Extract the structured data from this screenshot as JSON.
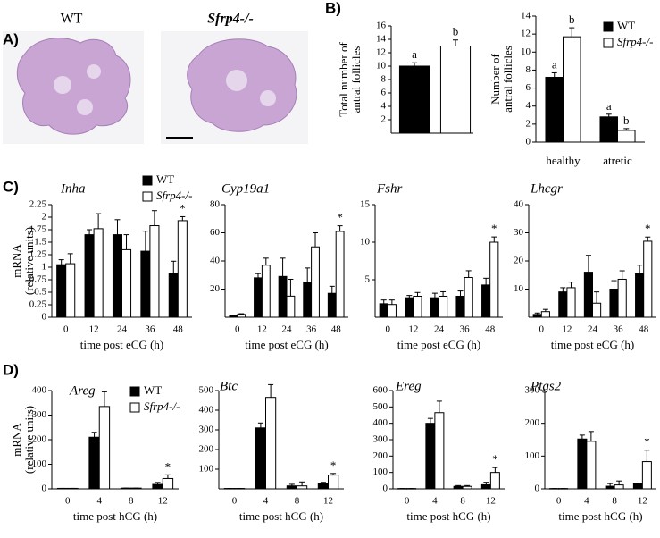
{
  "panel_labels": [
    "A)",
    "B)",
    "C)",
    "D)"
  ],
  "images": [
    "WT",
    "Sfrp4-/-"
  ],
  "chart_data": [
    {
      "type": "bar",
      "ylabel": [
        "Total number of",
        "antral follicles"
      ],
      "categories": [
        null,
        null
      ],
      "values": [
        10,
        13
      ],
      "errors": [
        0.5,
        0.9
      ],
      "colors": [
        "#000000",
        "#ffffff"
      ],
      "annotations": [
        "a",
        "b"
      ],
      "ylim": [
        0,
        16
      ],
      "yticks": [
        2,
        4,
        6,
        8,
        10,
        12,
        14,
        16
      ]
    },
    {
      "type": "grouped-bar",
      "ylabel": [
        "Number of",
        "antral follicles"
      ],
      "categories": [
        "healthy",
        "atretic"
      ],
      "legend": true,
      "series": [
        {
          "name": "WT",
          "color": "#000000",
          "values": [
            7.2,
            2.8
          ],
          "errors": [
            0.5,
            0.3
          ],
          "annotations": [
            "a",
            "a"
          ]
        },
        {
          "name": "Sfrp4-/-",
          "color": "#ffffff",
          "values": [
            11.7,
            1.3
          ],
          "errors": [
            1.0,
            0.2
          ],
          "annotations": [
            "b",
            "b"
          ]
        }
      ],
      "ylim": [
        0,
        14
      ],
      "yticks": [
        0,
        2,
        4,
        6,
        8,
        10,
        12,
        14
      ]
    },
    {
      "type": "grouped-bar",
      "title": "Inha",
      "ylabel": [
        "mRNA",
        "(relative units)"
      ],
      "xlabel": "time post eCG (h)",
      "legend": true,
      "categories": [
        "0",
        "12",
        "24",
        "36",
        "48"
      ],
      "series": [
        {
          "name": "WT",
          "color": "#000000",
          "values": [
            1.05,
            1.65,
            1.65,
            1.32,
            0.87
          ],
          "errors": [
            0.1,
            0.1,
            0.3,
            0.4,
            0.25
          ],
          "annotations": [
            null,
            null,
            null,
            null,
            null
          ]
        },
        {
          "name": "Sfrp4-/-",
          "color": "#ffffff",
          "values": [
            1.07,
            1.77,
            1.35,
            1.83,
            1.93
          ],
          "errors": [
            0.2,
            0.3,
            0.3,
            0.3,
            0.08
          ],
          "annotations": [
            null,
            null,
            null,
            null,
            "*"
          ]
        }
      ],
      "ylim": [
        0,
        2.25
      ],
      "yticks": [
        0,
        0.25,
        0.5,
        0.75,
        1,
        1.25,
        1.5,
        1.75,
        2,
        2.25
      ]
    },
    {
      "type": "grouped-bar",
      "title": "Cyp19a1",
      "xlabel": "time post eCG (h)",
      "categories": [
        "0",
        "12",
        "24",
        "36",
        "48"
      ],
      "series": [
        {
          "color": "#000000",
          "values": [
            1,
            28,
            29,
            25,
            17
          ],
          "errors": [
            0.5,
            3,
            13,
            10,
            5
          ],
          "annotations": [
            null,
            null,
            null,
            null,
            null
          ]
        },
        {
          "color": "#ffffff",
          "values": [
            2,
            37,
            15,
            50,
            61
          ],
          "errors": [
            0.5,
            5,
            12,
            10,
            4
          ],
          "annotations": [
            null,
            null,
            null,
            null,
            "*"
          ]
        }
      ],
      "ylim": [
        0,
        80
      ],
      "yticks": [
        20,
        40,
        60,
        80
      ]
    },
    {
      "type": "grouped-bar",
      "title": "Fshr",
      "xlabel": "time post eCG (h)",
      "categories": [
        "0",
        "12",
        "24",
        "36",
        "48"
      ],
      "series": [
        {
          "color": "#000000",
          "values": [
            1.8,
            2.6,
            2.6,
            2.8,
            4.3
          ],
          "errors": [
            0.5,
            0.3,
            0.6,
            0.7,
            0.9
          ],
          "annotations": [
            null,
            null,
            null,
            null,
            null
          ]
        },
        {
          "color": "#ffffff",
          "values": [
            1.7,
            2.8,
            2.8,
            5.3,
            10
          ],
          "errors": [
            0.6,
            0.5,
            0.6,
            0.9,
            0.7
          ],
          "annotations": [
            null,
            null,
            null,
            null,
            "*"
          ]
        }
      ],
      "ylim": [
        0,
        15
      ],
      "yticks": [
        5,
        10,
        15
      ]
    },
    {
      "type": "grouped-bar",
      "title": "Lhcgr",
      "xlabel": "time post eCG (h)",
      "categories": [
        "0",
        "12",
        "24",
        "36",
        "48"
      ],
      "series": [
        {
          "color": "#000000",
          "values": [
            1,
            9,
            16,
            10,
            15.5
          ],
          "errors": [
            0.5,
            1.5,
            6,
            3,
            3
          ],
          "annotations": [
            null,
            null,
            null,
            null,
            null
          ]
        },
        {
          "color": "#ffffff",
          "values": [
            2,
            10.5,
            5,
            13.5,
            27
          ],
          "errors": [
            0.8,
            2,
            4,
            3,
            1.5
          ],
          "annotations": [
            null,
            null,
            null,
            null,
            "*"
          ]
        }
      ],
      "ylim": [
        0,
        40
      ],
      "yticks": [
        10,
        20,
        30,
        40
      ]
    },
    {
      "type": "grouped-bar",
      "title": "Areg",
      "ylabel": [
        "mRNA",
        "(relative units)"
      ],
      "xlabel": "time post hCG (h)",
      "legend": true,
      "categories": [
        "0",
        "4",
        "8",
        "12"
      ],
      "series": [
        {
          "name": "WT",
          "color": "#000000",
          "values": [
            2,
            210,
            3,
            18
          ],
          "errors": [
            0,
            20,
            0,
            8
          ],
          "annotations": [
            null,
            null,
            null,
            null
          ]
        },
        {
          "name": "Sfrp4-/-",
          "color": "#ffffff",
          "values": [
            2,
            335,
            3,
            42
          ],
          "errors": [
            0,
            60,
            0,
            15
          ],
          "annotations": [
            null,
            null,
            null,
            "*"
          ]
        }
      ],
      "ylim": [
        0,
        400
      ],
      "yticks": [
        0,
        100,
        200,
        300,
        400
      ]
    },
    {
      "type": "grouped-bar",
      "title": "Btc",
      "xlabel": "time post hCG (h)",
      "categories": [
        "0",
        "4",
        "8",
        "12"
      ],
      "series": [
        {
          "color": "#000000",
          "values": [
            2,
            310,
            15,
            25
          ],
          "errors": [
            0,
            25,
            8,
            8
          ],
          "annotations": [
            null,
            null,
            null,
            null
          ]
        },
        {
          "color": "#ffffff",
          "values": [
            2,
            465,
            15,
            70
          ],
          "errors": [
            0,
            65,
            20,
            8
          ],
          "annotations": [
            null,
            null,
            null,
            "*"
          ]
        }
      ],
      "ylim": [
        0,
        500
      ],
      "yticks": [
        100,
        200,
        300,
        400,
        500
      ]
    },
    {
      "type": "grouped-bar",
      "title": "Ereg",
      "xlabel": "time post hCG (h)",
      "categories": [
        "0",
        "4",
        "8",
        "12"
      ],
      "series": [
        {
          "color": "#000000",
          "values": [
            2,
            400,
            15,
            25
          ],
          "errors": [
            0,
            30,
            5,
            15
          ],
          "annotations": [
            null,
            null,
            null,
            null
          ]
        },
        {
          "color": "#ffffff",
          "values": [
            2,
            465,
            15,
            100
          ],
          "errors": [
            0,
            70,
            5,
            30
          ],
          "annotations": [
            null,
            null,
            null,
            "*"
          ]
        }
      ],
      "ylim": [
        0,
        600
      ],
      "yticks": [
        0,
        100,
        200,
        300,
        400,
        500,
        600
      ]
    },
    {
      "type": "grouped-bar",
      "title": "Ptgs2",
      "xlabel": "time post hCG (h)",
      "categories": [
        "0",
        "4",
        "8",
        "12"
      ],
      "series": [
        {
          "color": "#000000",
          "values": [
            1,
            152,
            8,
            15
          ],
          "errors": [
            0,
            12,
            8,
            0
          ],
          "annotations": [
            null,
            null,
            null,
            null
          ]
        },
        {
          "color": "#ffffff",
          "values": [
            1,
            145,
            12,
            83
          ],
          "errors": [
            0,
            30,
            12,
            35
          ],
          "annotations": [
            null,
            null,
            null,
            "*"
          ]
        }
      ],
      "ylim": [
        0,
        300
      ],
      "yticks": [
        0,
        100,
        200,
        300
      ]
    }
  ]
}
